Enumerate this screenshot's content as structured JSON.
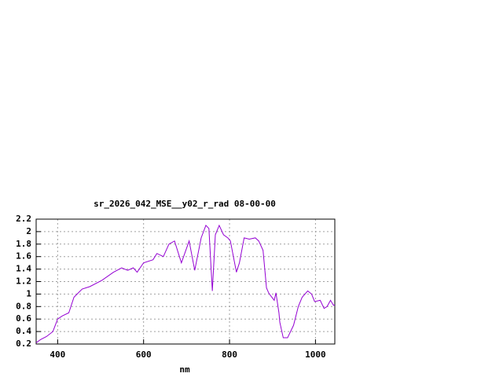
{
  "chart_data": {
    "type": "line",
    "title": "sr_2026_042_MSE__y02_r_rad 08-00-00",
    "x_label": "nm",
    "x": [
      350,
      360,
      374,
      389,
      400,
      411,
      426,
      438,
      457,
      475,
      503,
      530,
      549,
      563,
      576,
      585,
      600,
      622,
      631,
      646,
      659,
      672,
      688,
      706,
      719,
      734,
      745,
      752,
      760,
      767,
      776,
      786,
      796,
      802,
      809,
      816,
      823,
      834,
      846,
      860,
      868,
      878,
      886,
      891,
      895,
      904,
      908,
      915,
      917,
      925,
      935,
      949,
      960,
      969,
      982,
      991,
      998,
      1011,
      1020,
      1027,
      1035,
      1042,
      1045
    ],
    "series": [
      {
        "name": "sr_2026_042_MSE__y02_r_rad 08-00-00",
        "color": "#9400d3",
        "values": [
          0.22,
          0.27,
          0.32,
          0.4,
          0.6,
          0.65,
          0.7,
          0.95,
          1.08,
          1.12,
          1.22,
          1.35,
          1.42,
          1.38,
          1.42,
          1.35,
          1.5,
          1.55,
          1.65,
          1.6,
          1.8,
          1.85,
          1.5,
          1.85,
          1.38,
          1.9,
          2.1,
          2.05,
          1.05,
          1.95,
          2.1,
          1.95,
          1.9,
          1.85,
          1.6,
          1.35,
          1.5,
          1.9,
          1.88,
          1.9,
          1.85,
          1.7,
          1.1,
          1.02,
          0.98,
          0.9,
          1.02,
          0.7,
          0.55,
          0.3,
          0.3,
          0.5,
          0.8,
          0.95,
          1.05,
          1.0,
          0.88,
          0.9,
          0.77,
          0.8,
          0.9,
          0.82,
          0.83
        ]
      }
    ],
    "xlim": [
      350,
      1045
    ],
    "ylim": [
      0.2,
      2.2
    ],
    "xticks": [
      400,
      600,
      800,
      1000
    ],
    "yticks": [
      0.2,
      0.4,
      0.6,
      0.8,
      1,
      1.2,
      1.4,
      1.6,
      1.8,
      2,
      2.2
    ],
    "grid": true
  }
}
